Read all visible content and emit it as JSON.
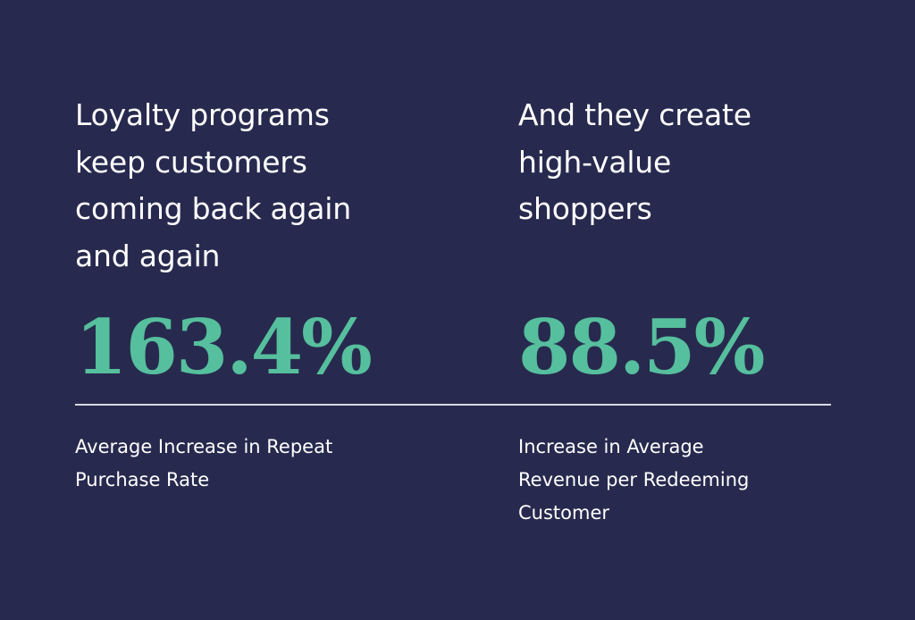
{
  "colors": {
    "background": "#272a4e",
    "heading_text": "#ffffff",
    "stat_accent": "#56bf9d",
    "divider": "#d8d9e2"
  },
  "left": {
    "heading_lines": [
      "Loyalty programs",
      "keep customers",
      "coming back again",
      "and again"
    ],
    "stat_value": "163.4%",
    "caption_lines": [
      "Average Increase in Repeat",
      "Purchase Rate"
    ]
  },
  "right": {
    "heading_lines": [
      "And they create",
      "high-value",
      "shoppers"
    ],
    "stat_value": "88.5%",
    "caption_lines": [
      "Increase in Average",
      "Revenue per Redeeming",
      "Customer"
    ]
  }
}
